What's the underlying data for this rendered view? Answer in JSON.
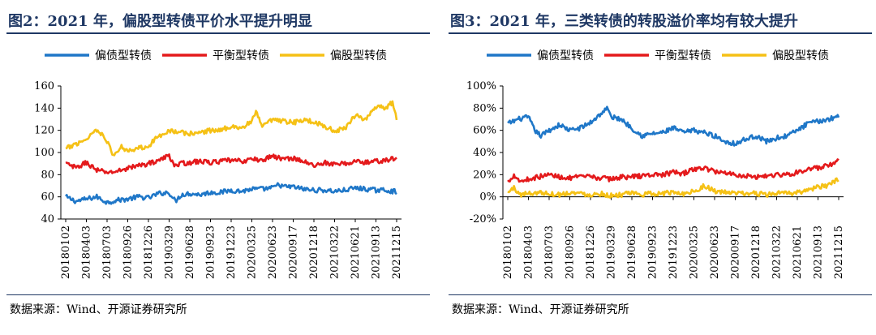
{
  "source_note": "数据来源：Wind、开源证券研究所",
  "chart_data": [
    {
      "id": "left",
      "type": "line",
      "title": "图2：2021 年，偏股型转债平价水平提升明显",
      "xlabel": "",
      "ylabel": "",
      "ylim": [
        40,
        160
      ],
      "yticks": [
        40,
        60,
        80,
        100,
        120,
        140,
        160
      ],
      "ytick_labels": [
        "40",
        "60",
        "80",
        "100",
        "120",
        "140",
        "160"
      ],
      "x_tick_labels": [
        "20180102",
        "20180403",
        "20180703",
        "20180926",
        "20181226",
        "20190329",
        "20190628",
        "20190923",
        "20191223",
        "20200325",
        "20200623",
        "20200917",
        "20201218",
        "20210322",
        "20210621",
        "20210913",
        "20211215"
      ],
      "legend_position": "top",
      "series": [
        {
          "name": "偏债型转债",
          "color": "#1f77c8",
          "anchors": [
            [
              0,
              60
            ],
            [
              0.5,
              56
            ],
            [
              1,
              58
            ],
            [
              1.5,
              60
            ],
            [
              2,
              55
            ],
            [
              2.5,
              57
            ],
            [
              3,
              58
            ],
            [
              3.5,
              60
            ],
            [
              4,
              59
            ],
            [
              4.5,
              63
            ],
            [
              5,
              64
            ],
            [
              5.3,
              56
            ],
            [
              5.6,
              62
            ],
            [
              6,
              63
            ],
            [
              6.5,
              62
            ],
            [
              7,
              64
            ],
            [
              7.5,
              64
            ],
            [
              8,
              66
            ],
            [
              8.5,
              65
            ],
            [
              9,
              67
            ],
            [
              9.5,
              67
            ],
            [
              10,
              68
            ],
            [
              10.3,
              71
            ],
            [
              10.6,
              69
            ],
            [
              11,
              69
            ],
            [
              11.5,
              67
            ],
            [
              12,
              66
            ],
            [
              12.5,
              66
            ],
            [
              13,
              65
            ],
            [
              13.5,
              66
            ],
            [
              14,
              68
            ],
            [
              14.5,
              67
            ],
            [
              15,
              66
            ],
            [
              15.5,
              66
            ],
            [
              16,
              64.5
            ]
          ]
        },
        {
          "name": "平衡型转债",
          "color": "#e41a1c",
          "anchors": [
            [
              0,
              90
            ],
            [
              0.5,
              86
            ],
            [
              1,
              91
            ],
            [
              1.5,
              84
            ],
            [
              2,
              82
            ],
            [
              2.5,
              83
            ],
            [
              3,
              86
            ],
            [
              3.5,
              88
            ],
            [
              4,
              90
            ],
            [
              4.5,
              93
            ],
            [
              5,
              97
            ],
            [
              5.3,
              88
            ],
            [
              5.6,
              90
            ],
            [
              6,
              91
            ],
            [
              6.5,
              92
            ],
            [
              7,
              91
            ],
            [
              7.5,
              92
            ],
            [
              8,
              93
            ],
            [
              8.5,
              92
            ],
            [
              9,
              94
            ],
            [
              9.5,
              93
            ],
            [
              10,
              97
            ],
            [
              10.5,
              94
            ],
            [
              11,
              95
            ],
            [
              11.5,
              92
            ],
            [
              12,
              88
            ],
            [
              12.5,
              91
            ],
            [
              13,
              89
            ],
            [
              13.5,
              90
            ],
            [
              14,
              92
            ],
            [
              14.5,
              91
            ],
            [
              15,
              92
            ],
            [
              15.5,
              93
            ],
            [
              16,
              95
            ]
          ]
        },
        {
          "name": "偏股型转债",
          "color": "#f5c116",
          "anchors": [
            [
              0,
              103
            ],
            [
              0.5,
              108
            ],
            [
              1,
              112
            ],
            [
              1.4,
              120
            ],
            [
              1.8,
              117
            ],
            [
              2,
              110
            ],
            [
              2.3,
              97
            ],
            [
              2.7,
              105
            ],
            [
              3,
              102
            ],
            [
              3.5,
              104
            ],
            [
              4,
              106
            ],
            [
              4.5,
              115
            ],
            [
              5,
              120
            ],
            [
              5.5,
              118
            ],
            [
              6,
              117
            ],
            [
              6.5,
              118
            ],
            [
              7,
              120
            ],
            [
              7.5,
              120
            ],
            [
              8,
              124
            ],
            [
              8.5,
              122
            ],
            [
              9,
              128
            ],
            [
              9.2,
              136
            ],
            [
              9.5,
              124
            ],
            [
              10,
              129
            ],
            [
              10.5,
              128
            ],
            [
              11,
              127
            ],
            [
              11.5,
              129
            ],
            [
              12,
              128
            ],
            [
              12.5,
              124
            ],
            [
              13,
              119
            ],
            [
              13.5,
              122
            ],
            [
              14,
              134
            ],
            [
              14.5,
              130
            ],
            [
              15,
              140
            ],
            [
              15.5,
              141
            ],
            [
              15.8,
              145
            ],
            [
              16,
              131
            ]
          ]
        }
      ]
    },
    {
      "id": "right",
      "type": "line",
      "title": "图3：2021 年，三类转债的转股溢价率均有较大提升",
      "xlabel": "",
      "ylabel": "",
      "ylim": [
        -20,
        100
      ],
      "yticks": [
        -20,
        0,
        20,
        40,
        60,
        80,
        100
      ],
      "ytick_labels": [
        "-20%",
        "0%",
        "20%",
        "40%",
        "60%",
        "80%",
        "100%"
      ],
      "x_tick_labels": [
        "20180102",
        "20180403",
        "20180703",
        "20180926",
        "20181226",
        "20190329",
        "20190628",
        "20190923",
        "20191223",
        "20200325",
        "20200623",
        "20200917",
        "20201218",
        "20210322",
        "20210621",
        "20210913",
        "20211215"
      ],
      "legend_position": "top",
      "series": [
        {
          "name": "偏债型转债",
          "color": "#1f77c8",
          "anchors": [
            [
              0,
              66
            ],
            [
              0.5,
              70
            ],
            [
              1,
              72
            ],
            [
              1.3,
              60
            ],
            [
              1.6,
              55
            ],
            [
              2,
              60
            ],
            [
              2.5,
              65
            ],
            [
              3,
              60
            ],
            [
              3.5,
              62
            ],
            [
              4,
              67
            ],
            [
              4.5,
              75
            ],
            [
              4.8,
              80
            ],
            [
              5,
              72
            ],
            [
              5.5,
              70
            ],
            [
              6,
              62
            ],
            [
              6.5,
              55
            ],
            [
              7,
              57
            ],
            [
              7.5,
              58
            ],
            [
              8,
              62
            ],
            [
              8.5,
              58
            ],
            [
              9,
              60
            ],
            [
              9.5,
              58
            ],
            [
              10,
              55
            ],
            [
              10.5,
              50
            ],
            [
              11,
              48
            ],
            [
              11.5,
              52
            ],
            [
              12,
              55
            ],
            [
              12.5,
              50
            ],
            [
              13,
              53
            ],
            [
              13.5,
              55
            ],
            [
              14,
              60
            ],
            [
              14.5,
              66
            ],
            [
              15,
              68
            ],
            [
              15.5,
              70
            ],
            [
              16,
              73
            ]
          ]
        },
        {
          "name": "平衡型转债",
          "color": "#e41a1c",
          "anchors": [
            [
              0,
              13
            ],
            [
              0.3,
              20
            ],
            [
              0.6,
              14
            ],
            [
              1,
              16
            ],
            [
              1.5,
              18
            ],
            [
              2,
              20
            ],
            [
              2.5,
              18
            ],
            [
              3,
              17
            ],
            [
              3.5,
              18
            ],
            [
              4,
              18
            ],
            [
              4.5,
              17
            ],
            [
              5,
              16
            ],
            [
              5.5,
              18
            ],
            [
              6,
              18
            ],
            [
              6.5,
              19
            ],
            [
              7,
              20
            ],
            [
              7.5,
              20
            ],
            [
              8,
              22
            ],
            [
              8.5,
              21
            ],
            [
              9,
              25
            ],
            [
              9.5,
              26
            ],
            [
              10,
              23
            ],
            [
              10.5,
              22
            ],
            [
              11,
              20
            ],
            [
              11.5,
              19
            ],
            [
              12,
              18
            ],
            [
              12.5,
              19
            ],
            [
              13,
              20
            ],
            [
              13.5,
              20
            ],
            [
              14,
              22
            ],
            [
              14.5,
              25
            ],
            [
              15,
              26
            ],
            [
              15.5,
              28
            ],
            [
              16,
              32
            ]
          ]
        },
        {
          "name": "偏股型转债",
          "color": "#f5c116",
          "anchors": [
            [
              0,
              4
            ],
            [
              0.3,
              8
            ],
            [
              0.6,
              2
            ],
            [
              1,
              3
            ],
            [
              1.5,
              4
            ],
            [
              2,
              3
            ],
            [
              2.5,
              2
            ],
            [
              3,
              4
            ],
            [
              3.5,
              3
            ],
            [
              4,
              2
            ],
            [
              4.5,
              3
            ],
            [
              5,
              1
            ],
            [
              5.5,
              2
            ],
            [
              6,
              3
            ],
            [
              6.5,
              2
            ],
            [
              7,
              3
            ],
            [
              7.5,
              3
            ],
            [
              8,
              4
            ],
            [
              8.5,
              3
            ],
            [
              9,
              5
            ],
            [
              9.5,
              10
            ],
            [
              10,
              5
            ],
            [
              10.5,
              4
            ],
            [
              11,
              3
            ],
            [
              11.5,
              3
            ],
            [
              12,
              3
            ],
            [
              12.5,
              2
            ],
            [
              13,
              3
            ],
            [
              13.5,
              3
            ],
            [
              14,
              4
            ],
            [
              14.5,
              6
            ],
            [
              15,
              9
            ],
            [
              15.5,
              10
            ],
            [
              16,
              16
            ]
          ]
        }
      ]
    }
  ]
}
